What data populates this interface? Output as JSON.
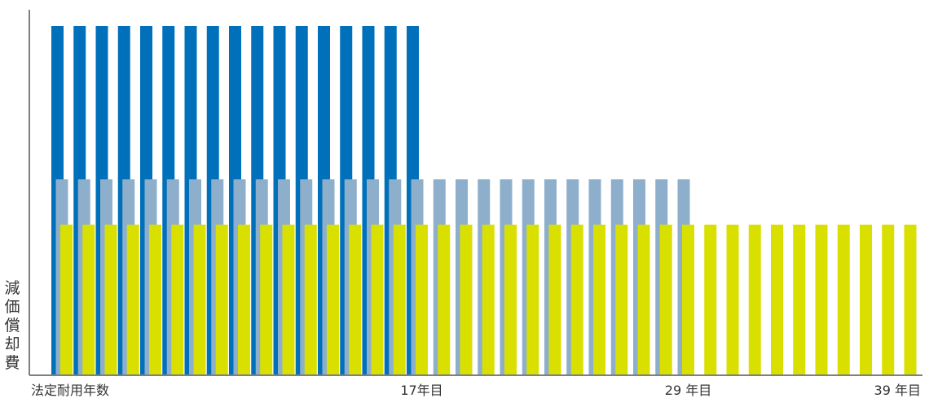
{
  "chart_data": {
    "type": "bar",
    "title": "",
    "ylabel": "減価償却費",
    "xlabel": "",
    "grid": false,
    "legend": "none",
    "x_tick_labels": [
      {
        "label": "法定耐用年数",
        "year": 1,
        "anchor": "start"
      },
      {
        "label": "17年目",
        "year": 17,
        "anchor": "middle"
      },
      {
        "label": "29 年目",
        "year": 29,
        "anchor": "middle"
      },
      {
        "label": "39 年目",
        "year": 39,
        "anchor": "end"
      }
    ],
    "ylim": [
      0,
      100
    ],
    "series": [
      {
        "color": "#0070BA",
        "years": 17,
        "value": 100
      },
      {
        "color": "#8EAFCB",
        "years": 29,
        "value": 56
      },
      {
        "color": "#D9E000",
        "years": 39,
        "value": 43
      }
    ]
  }
}
